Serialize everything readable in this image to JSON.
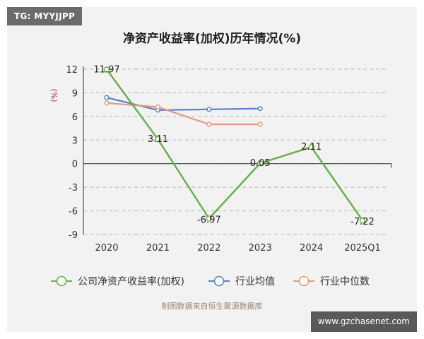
{
  "tag": "TG: MYYJJPP",
  "watermark": "www.gzchasenet.com",
  "source": "制图数据来自恒生聚源数据库",
  "chart_data": {
    "type": "line",
    "title": "净资产收益率(加权)历年情况(%)",
    "ylabel": "(%)",
    "categories": [
      "2020",
      "2021",
      "2022",
      "2023",
      "2024",
      "2025Q1"
    ],
    "ylim": [
      -9,
      12
    ],
    "yticks": [
      -9,
      -6,
      -3,
      0,
      3,
      6,
      9,
      12
    ],
    "grid": true,
    "legend_position": "bottom",
    "series": [
      {
        "name": "公司净资产收益率(加权)",
        "color": "#6ab04c",
        "values": [
          11.97,
          3.11,
          -6.97,
          0.05,
          2.11,
          -7.22
        ],
        "labels": [
          "11.97",
          "3.11",
          "-6.97",
          "0.05",
          "2.11",
          "-7.22"
        ]
      },
      {
        "name": "行业均值",
        "color": "#5b7fc6",
        "values": [
          8.4,
          6.8,
          6.9,
          7.0,
          null,
          null
        ]
      },
      {
        "name": "行业中位数",
        "color": "#e39c7a",
        "values": [
          7.7,
          7.2,
          5.0,
          5.0,
          null,
          null
        ]
      }
    ]
  }
}
